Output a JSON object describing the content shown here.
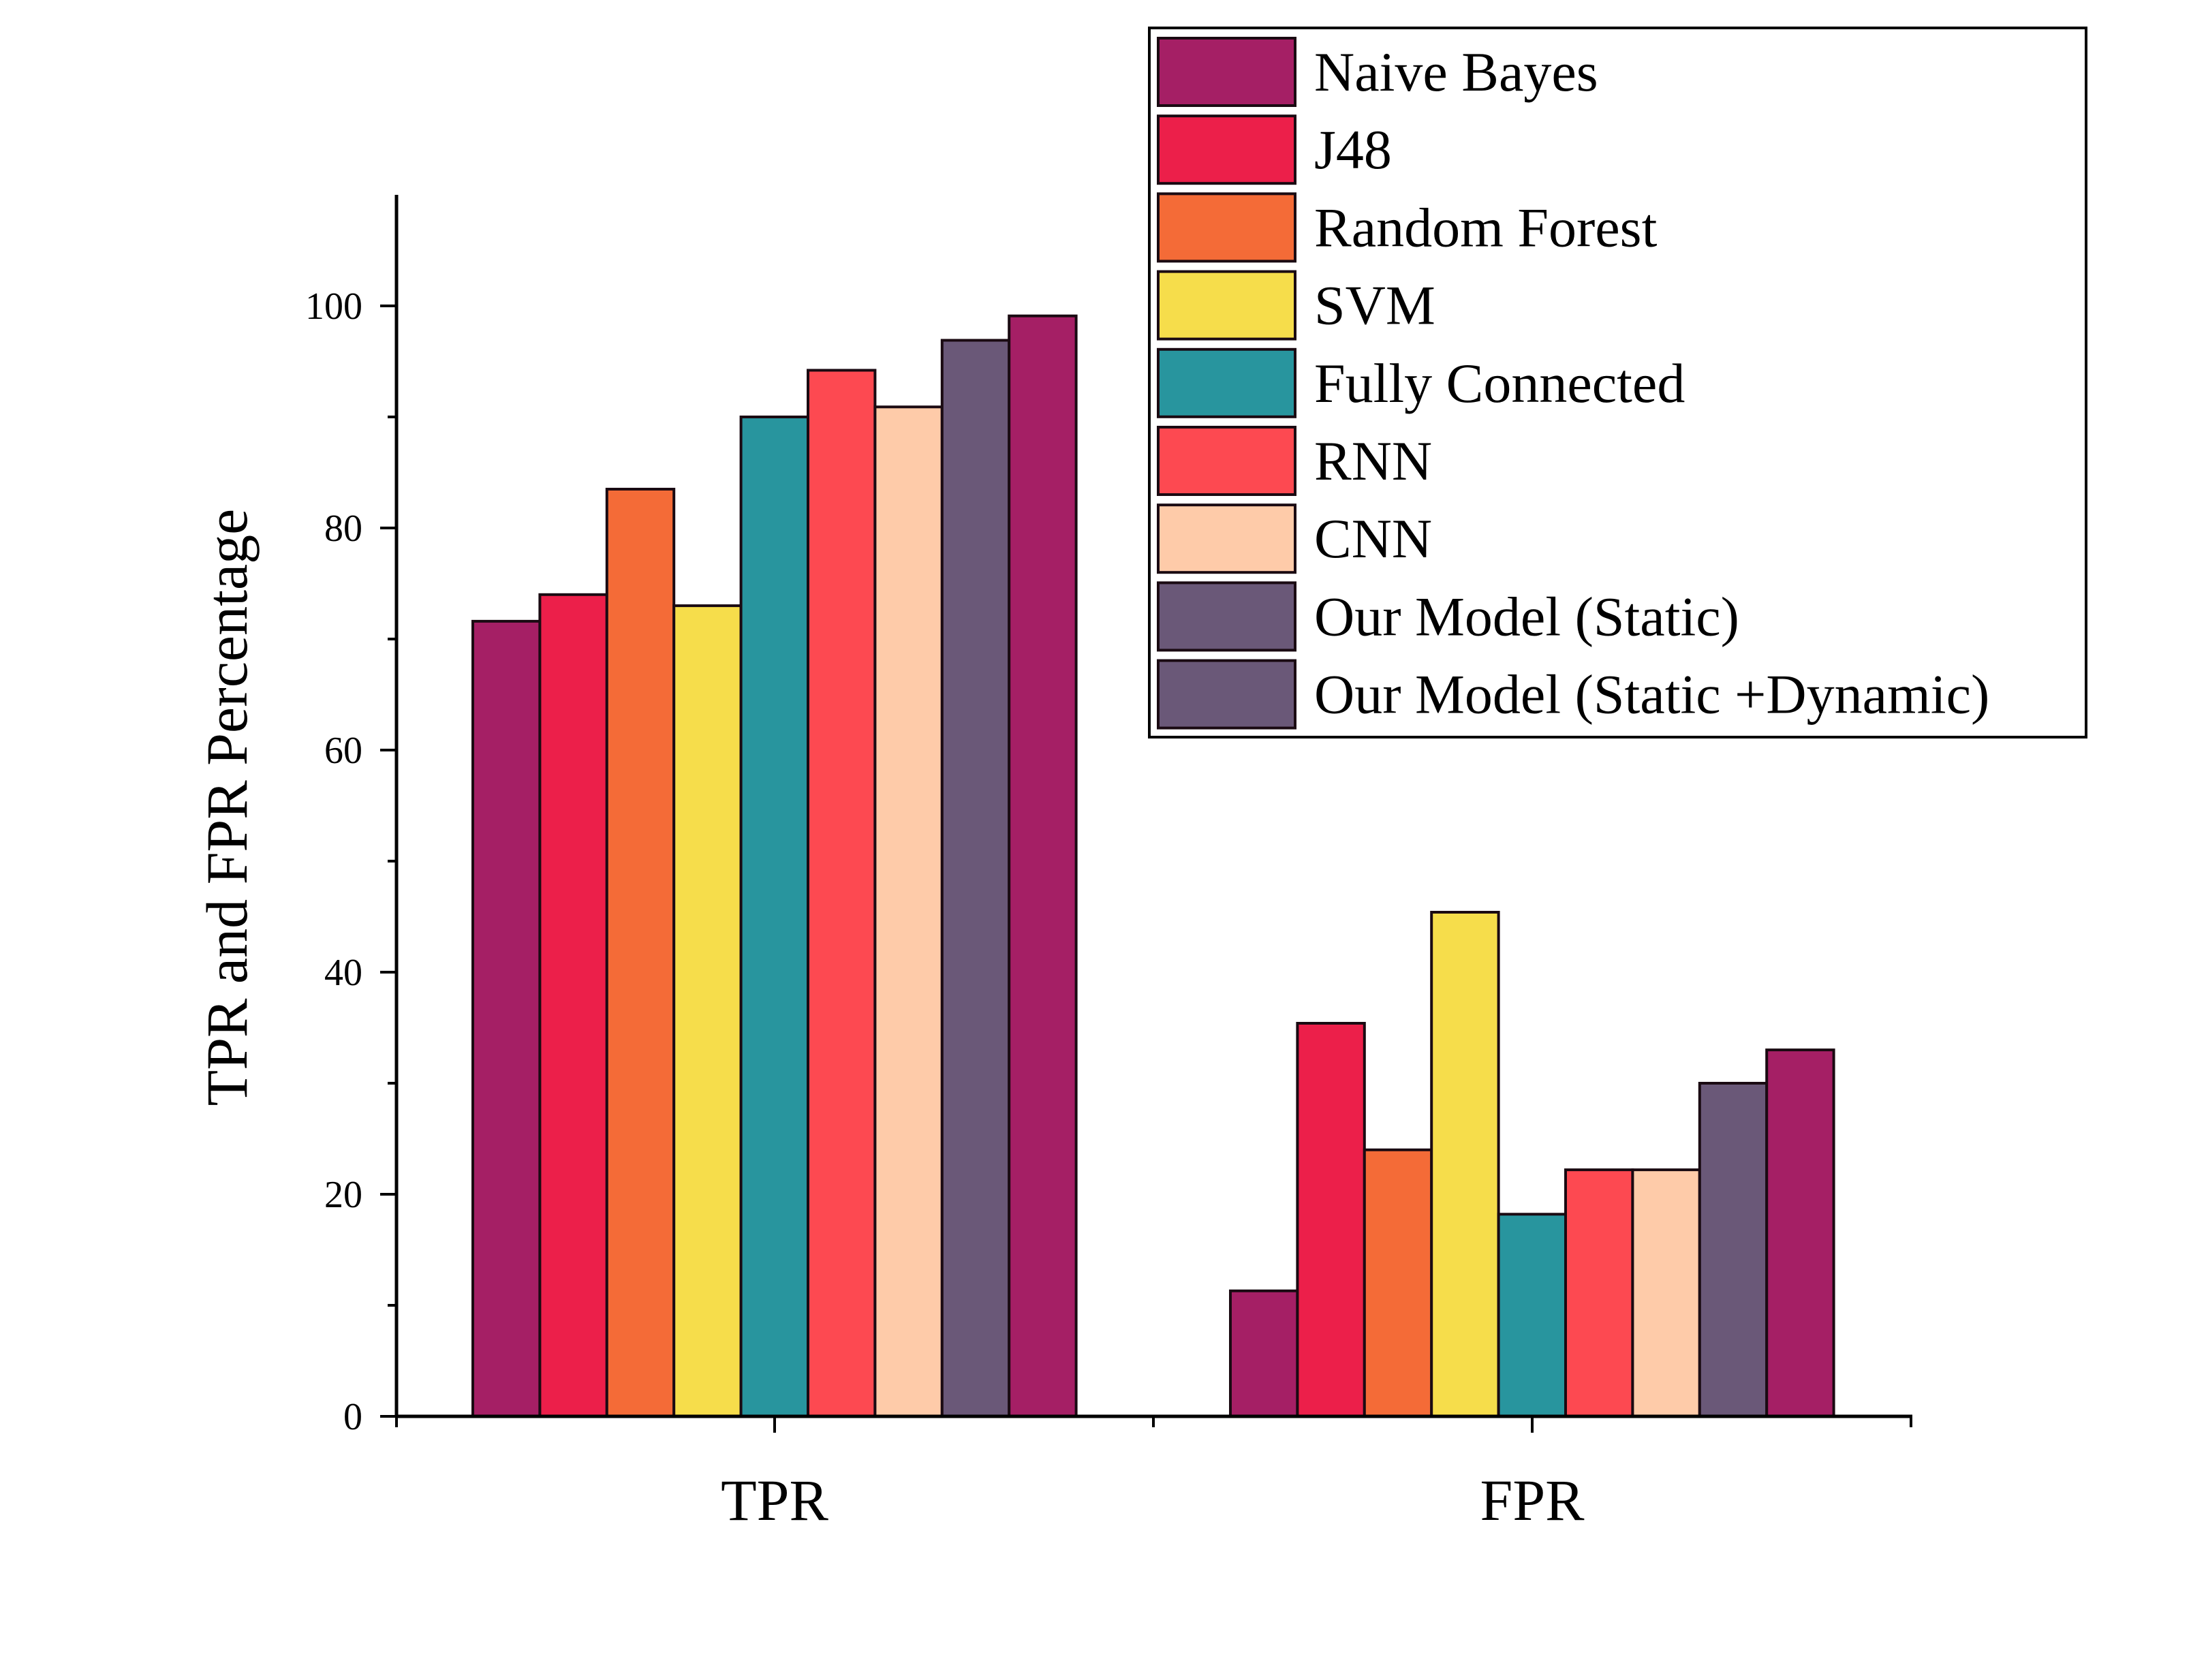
{
  "chart_data": {
    "type": "bar",
    "title": "",
    "xlabel": "",
    "ylabel": "TPR and FPR Percentage",
    "ylim": [
      0,
      110
    ],
    "yticks": [
      0,
      20,
      40,
      60,
      80,
      100
    ],
    "categories": [
      "TPR",
      "FPR"
    ],
    "grid": false,
    "legend_position": "top-right",
    "series": [
      {
        "name": "Naive Bayes",
        "color": "#A51F65",
        "values": [
          71.6,
          11.3
        ]
      },
      {
        "name": "J48",
        "color": "#EC1F4A",
        "values": [
          74.0,
          35.4
        ]
      },
      {
        "name": "Random Forest",
        "color": "#F46B37",
        "values": [
          83.5,
          24.0
        ]
      },
      {
        "name": "SVM",
        "color": "#F6DD4B",
        "values": [
          73.0,
          45.4
        ]
      },
      {
        "name": "Fully Connected",
        "color": "#28959E",
        "values": [
          90.0,
          18.2
        ]
      },
      {
        "name": "RNN",
        "color": "#FD4951",
        "values": [
          94.2,
          22.2
        ]
      },
      {
        "name": "CNN",
        "color": "#FECBA9",
        "values": [
          90.9,
          22.2
        ]
      },
      {
        "name": "Our Model (Static)",
        "color": "#6A5878",
        "values": [
          96.9,
          30.0
        ]
      },
      {
        "name": "Our Model (Static +Dynamic)",
        "color": "#A51F65",
        "legend_color": "#6A5878",
        "values": [
          99.1,
          33.0
        ]
      }
    ]
  }
}
